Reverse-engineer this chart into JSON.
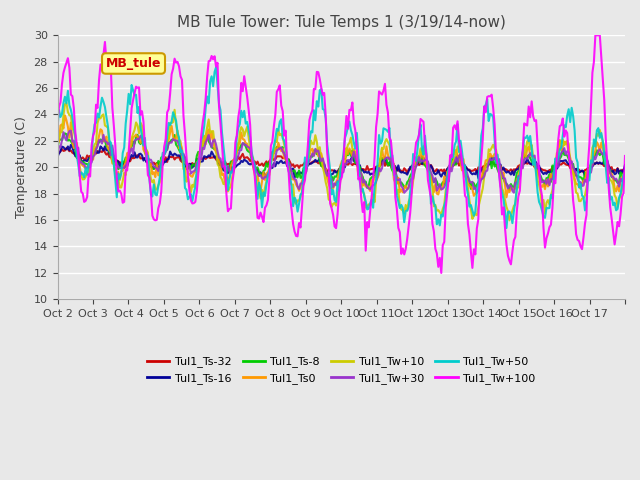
{
  "title": "MB Tule Tower: Tule Temps 1 (3/19/14-now)",
  "ylabel": "Temperature (C)",
  "ylim": [
    10,
    30
  ],
  "yticks": [
    10,
    12,
    14,
    16,
    18,
    20,
    22,
    24,
    26,
    28,
    30
  ],
  "x_tick_positions": [
    0,
    1,
    2,
    3,
    4,
    5,
    6,
    7,
    8,
    9,
    10,
    11,
    12,
    13,
    14,
    15,
    16
  ],
  "x_labels": [
    "Oct 2",
    "Oct 3",
    "Oct 4",
    "Oct 5",
    "Oct 6",
    "Oct 7",
    "Oct 8",
    "Oct 9",
    "Oct 10",
    "Oct 11",
    "Oct 12",
    "Oct 13",
    "Oct 14",
    "Oct 15",
    "Oct 16",
    "Oct 17",
    ""
  ],
  "plot_bg_color": "#e8e8e8",
  "series": [
    {
      "name": "Tul1_Ts-32",
      "color": "#cc0000",
      "lw": 1.5
    },
    {
      "name": "Tul1_Ts-16",
      "color": "#000099",
      "lw": 1.5
    },
    {
      "name": "Tul1_Ts-8",
      "color": "#00cc00",
      "lw": 1.5
    },
    {
      "name": "Tul1_Ts0",
      "color": "#ff9900",
      "lw": 1.5
    },
    {
      "name": "Tul1_Tw+10",
      "color": "#cccc00",
      "lw": 1.5
    },
    {
      "name": "Tul1_Tw+30",
      "color": "#9933cc",
      "lw": 1.5
    },
    {
      "name": "Tul1_Tw+50",
      "color": "#00cccc",
      "lw": 1.5
    },
    {
      "name": "Tul1_Tw+100",
      "color": "#ff00ff",
      "lw": 1.5
    }
  ],
  "mb_tule_box": {
    "text": "MB_tule",
    "fc": "#ffff99",
    "ec": "#cc9900",
    "tc": "#cc0000"
  }
}
